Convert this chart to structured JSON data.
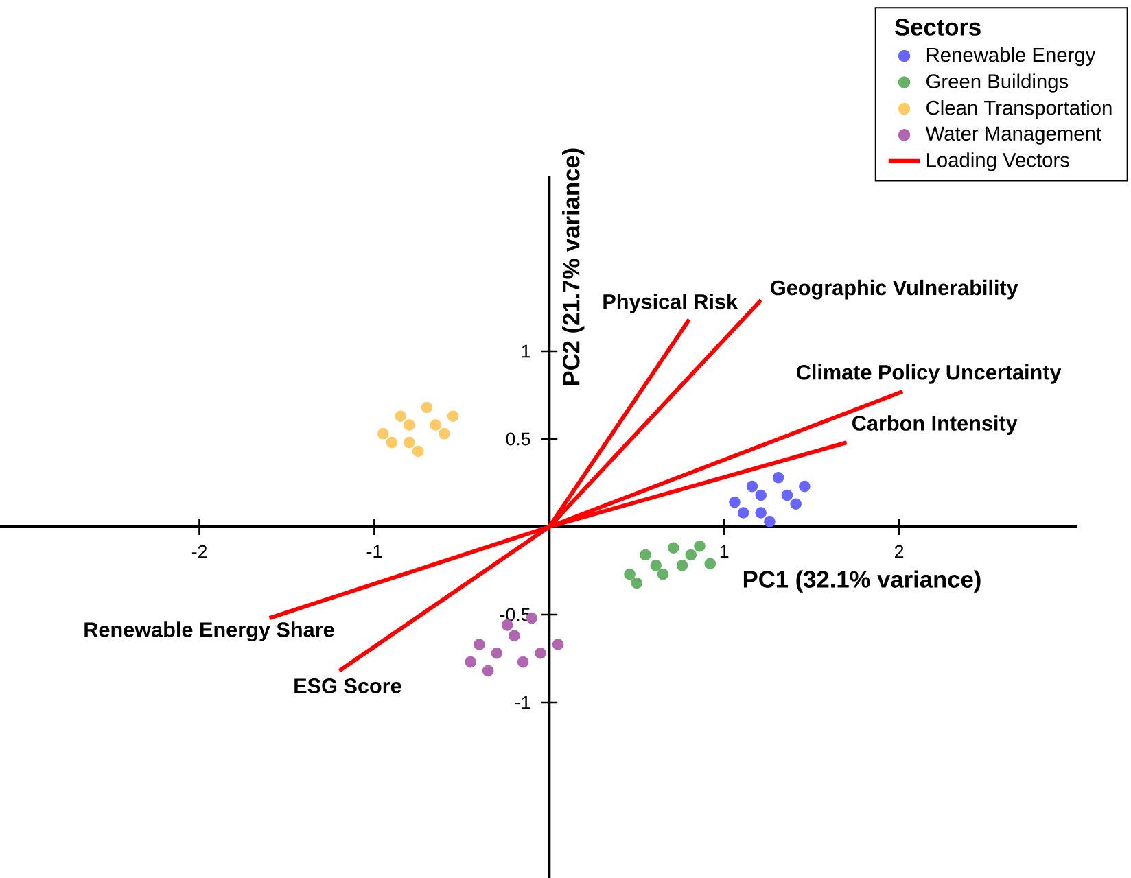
{
  "chart_data": {
    "type": "scatter",
    "xlabel": "PC1 (32.1% variance)",
    "ylabel": "PC2 (21.7% variance)",
    "legend_title": "Sectors",
    "legend": "top right",
    "xlim": [
      -3.14,
      3.02
    ],
    "ylim": [
      -2,
      2
    ],
    "xticks": [
      -2,
      -1,
      1,
      2
    ],
    "yticks": [
      -1,
      -0.5,
      0.5,
      1
    ],
    "series": [
      {
        "name": "Renewable Energy",
        "color": "#6666ff",
        "x": [
          1.06,
          1.11,
          1.16,
          1.21,
          1.21,
          1.26,
          1.31,
          1.36,
          1.41,
          1.46
        ],
        "values": [
          0.14,
          0.08,
          0.23,
          0.18,
          0.08,
          0.03,
          0.28,
          0.18,
          0.13,
          0.23
        ]
      },
      {
        "name": "Green Buildings",
        "color": "#66b266",
        "x": [
          0.46,
          0.5,
          0.55,
          0.61,
          0.65,
          0.71,
          0.76,
          0.81,
          0.86,
          0.92
        ],
        "values": [
          -0.27,
          -0.32,
          -0.16,
          -0.22,
          -0.27,
          -0.12,
          -0.22,
          -0.16,
          -0.11,
          -0.21
        ]
      },
      {
        "name": "Clean Transportation",
        "color": "#ffc966",
        "x": [
          -0.95,
          -0.9,
          -0.85,
          -0.8,
          -0.8,
          -0.75,
          -0.7,
          -0.65,
          -0.6,
          -0.55
        ],
        "values": [
          0.53,
          0.48,
          0.63,
          0.58,
          0.48,
          0.43,
          0.68,
          0.58,
          0.53,
          0.63
        ]
      },
      {
        "name": "Water Management",
        "color": "#b266b2",
        "x": [
          -0.45,
          -0.4,
          -0.35,
          -0.3,
          -0.24,
          -0.2,
          -0.15,
          -0.1,
          -0.05,
          0.05
        ],
        "values": [
          -0.77,
          -0.67,
          -0.82,
          -0.72,
          -0.56,
          -0.62,
          -0.77,
          -0.52,
          -0.72,
          -0.67
        ]
      },
      {
        "name": "Loading Vectors",
        "type": "line",
        "color": "#ff0000",
        "x": [
          0,
          0.8,
          null,
          0,
          1.21,
          null,
          0,
          2.02,
          null,
          0,
          1.7,
          null,
          0,
          -1.6,
          null,
          0,
          -1.2
        ],
        "values": [
          0,
          1.18,
          null,
          0,
          1.29,
          null,
          0,
          0.77,
          null,
          0,
          0.48,
          null,
          0,
          -0.52,
          null,
          0,
          -0.82
        ]
      }
    ],
    "annotations": [
      {
        "text": "Physical Risk",
        "x": 0.8,
        "y": 1.18
      },
      {
        "text": "Geographic Vulnerability",
        "x": 1.21,
        "y": 1.29
      },
      {
        "text": "Climate Policy Uncertainty",
        "x": 2.02,
        "y": 0.77
      },
      {
        "text": "Carbon Intensity",
        "x": 1.7,
        "y": 0.48
      },
      {
        "text": "Renewable Energy Share",
        "x": -1.6,
        "y": -0.52
      },
      {
        "text": "ESG Score",
        "x": -1.2,
        "y": -0.82
      }
    ]
  }
}
